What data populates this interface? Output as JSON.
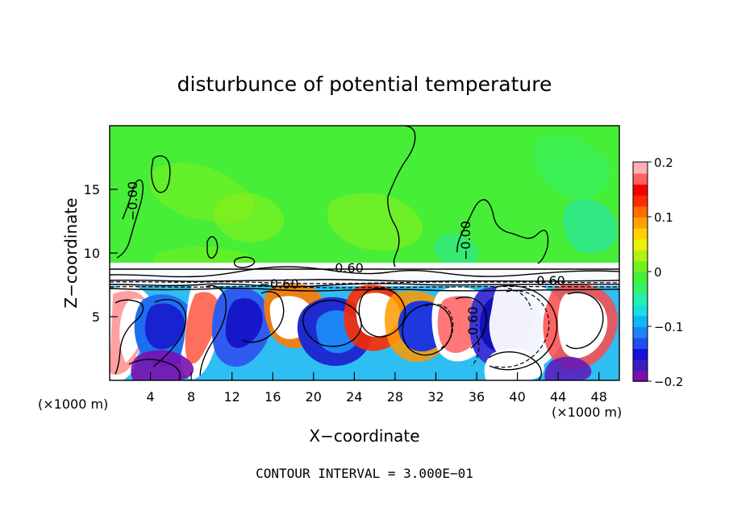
{
  "chart_data": {
    "type": "heatmap",
    "title": "disturbunce of potential temperature",
    "xlabel": "X−coordinate",
    "ylabel": "Z−coordinate",
    "x_unit_left": "(×1000 m)",
    "x_unit_right": "(×1000 m)",
    "x_ticks": [
      "4",
      "8",
      "12",
      "16",
      "20",
      "24",
      "28",
      "32",
      "36",
      "40",
      "44",
      "48"
    ],
    "x_tick_values": [
      4,
      8,
      12,
      16,
      20,
      24,
      28,
      32,
      36,
      40,
      44,
      48
    ],
    "y_ticks": [
      "5",
      "10",
      "15"
    ],
    "y_tick_values": [
      5,
      10,
      15
    ],
    "xlim": [
      0,
      50
    ],
    "ylim": [
      0,
      20
    ],
    "colorbar": {
      "ticks": [
        "0.2",
        "0.1",
        "0",
        "−0.1",
        "−0.2"
      ],
      "tick_values": [
        0.2,
        0.1,
        0,
        -0.1,
        -0.2
      ],
      "range": [
        -0.2,
        0.2
      ],
      "colors": [
        "#7a0fb0",
        "#3a1cbf",
        "#1212d9",
        "#1f4ff0",
        "#1d84f5",
        "#11b6f5",
        "#18e0e0",
        "#27efb0",
        "#33f26a",
        "#46ee38",
        "#71f01f",
        "#b6ef12",
        "#eaf20a",
        "#ffd200",
        "#ffa100",
        "#ff6d00",
        "#ff2a00",
        "#f40000",
        "#ff5f5f",
        "#ffb0b0"
      ]
    },
    "contour_labels": [
      "−0.00",
      "−0.00",
      "0.60",
      "0.60",
      "−0.60",
      "0.60"
    ],
    "footer": "CONTOUR INTERVAL = 3.000E−01"
  }
}
